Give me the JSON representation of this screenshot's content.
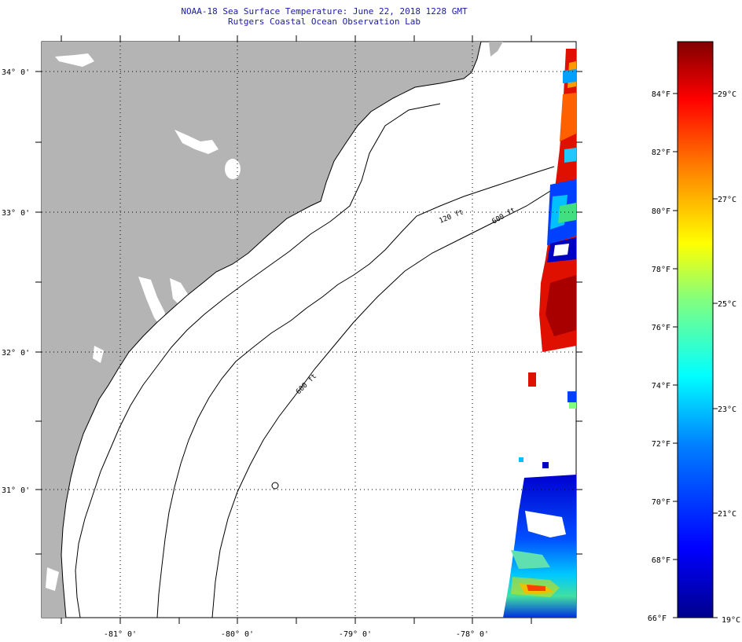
{
  "header": {
    "title": "NOAA-18 Sea Surface Temperature:  June 22, 2018 1228 GMT",
    "subtitle": "Rutgers Coastal Ocean Observation Lab"
  },
  "map": {
    "lat_labels": [
      "34° 0'",
      "33° 0'",
      "32° 0'",
      "31° 0'"
    ],
    "lon_labels": [
      "-81° 0'",
      "-80° 0'",
      "-79° 0'",
      "-78° 0'"
    ],
    "isobath_labels": [
      "120 ft",
      "600 ft",
      "600 ft"
    ],
    "colors": {
      "land": "#b4b4b4",
      "ocean_nodata": "#ffffff",
      "grid": "#000000"
    }
  },
  "colorbar": {
    "fahrenheit_labels": [
      "84°F",
      "82°F",
      "80°F",
      "78°F",
      "76°F",
      "74°F",
      "72°F",
      "70°F",
      "68°F",
      "66°F"
    ],
    "celsius_labels": [
      "29°C",
      "27°C",
      "25°C",
      "23°C",
      "21°C",
      "19°C"
    ],
    "colors": [
      "#00008c",
      "#0000ff",
      "#0080ff",
      "#00ffff",
      "#80ff80",
      "#ffff00",
      "#ff8000",
      "#ff0000",
      "#800000"
    ]
  }
}
